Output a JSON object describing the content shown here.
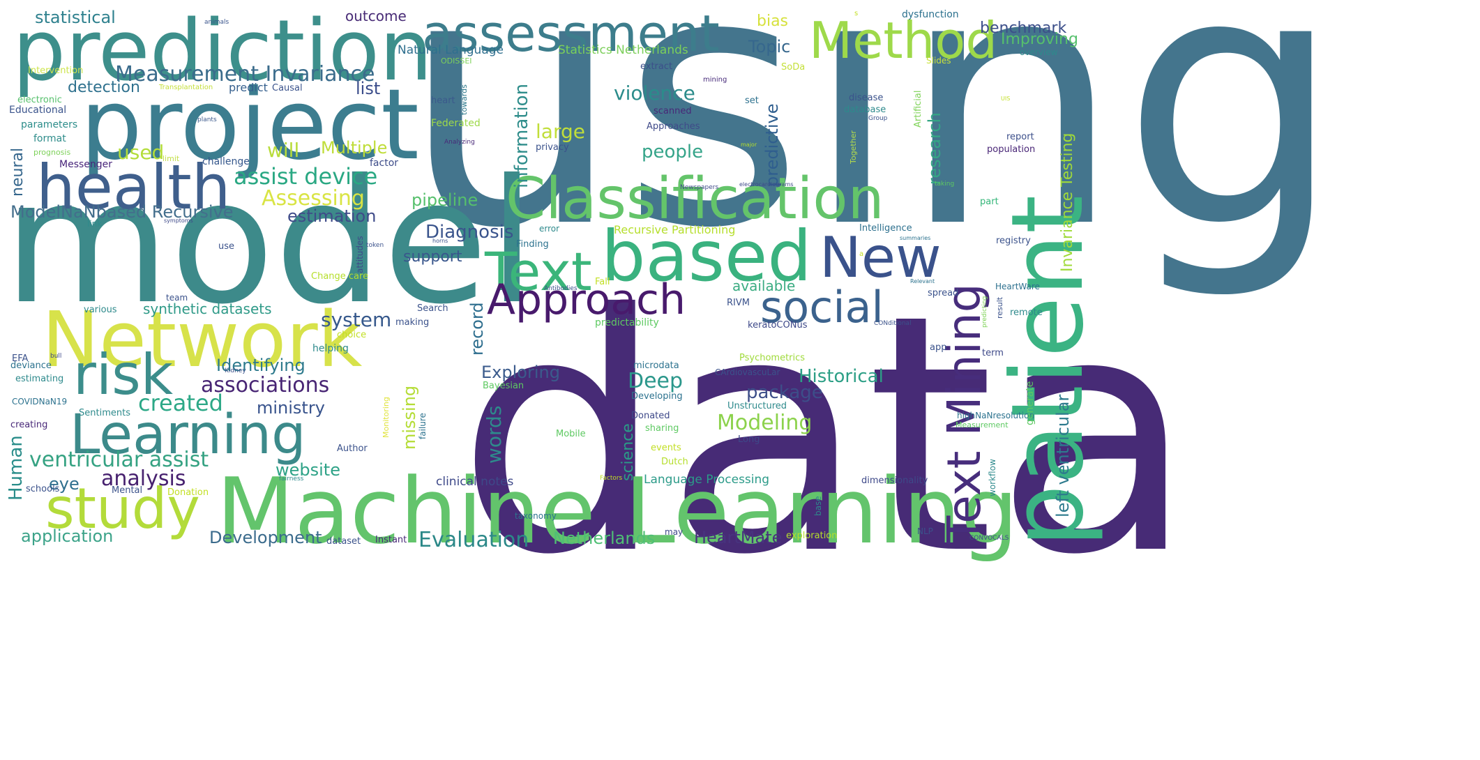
{
  "words": [
    {
      "text": "using",
      "color": "#44758d"
    },
    {
      "text": "data",
      "color": "#472b76"
    },
    {
      "text": "model",
      "color": "#3d8a8a"
    },
    {
      "text": "prediction",
      "color": "#3d8f8b"
    },
    {
      "text": "project",
      "color": "#3c7d8f"
    },
    {
      "text": "Machine Learning",
      "color": "#63c46c"
    },
    {
      "text": "patient",
      "color": "#3bb383"
    },
    {
      "text": "Network",
      "color": "#d7e24a"
    },
    {
      "text": "Classification",
      "color": "#64c46a"
    },
    {
      "text": "assessment",
      "color": "#3d7d8c"
    },
    {
      "text": "health",
      "color": "#3f5f8c"
    },
    {
      "text": "based",
      "color": "#3ab27f"
    },
    {
      "text": "Method",
      "color": "#9ed94a"
    },
    {
      "text": "Learning",
      "color": "#3c8a8a"
    },
    {
      "text": "risk",
      "color": "#3c8d8b"
    },
    {
      "text": "study",
      "color": "#b3db3a"
    },
    {
      "text": "Text Mining",
      "color": "#472d7c"
    },
    {
      "text": "Text",
      "color": "#3bb57a"
    },
    {
      "text": "Approach",
      "color": "#481a6c"
    },
    {
      "text": "New",
      "color": "#3a528b"
    },
    {
      "text": "social",
      "color": "#3b628d"
    },
    {
      "text": "ventricular assist",
      "color": "#35a282"
    },
    {
      "text": "Measurement Invariance",
      "color": "#3b6c8c"
    },
    {
      "text": "assist device",
      "color": "#2aa883"
    },
    {
      "text": "Assessing",
      "color": "#d9e444"
    },
    {
      "text": "ModelNaNbased Recursive",
      "color": "#436e8c"
    },
    {
      "text": "associations",
      "color": "#482574"
    },
    {
      "text": "created",
      "color": "#2da887"
    },
    {
      "text": "analysis",
      "color": "#47216f"
    },
    {
      "text": "application",
      "color": "#3ca389"
    },
    {
      "text": "Development",
      "color": "#3b6b8c"
    },
    {
      "text": "Evaluation",
      "color": "#2b8888"
    },
    {
      "text": "Netherlands",
      "color": "#4fbf75"
    },
    {
      "text": "HeartMate",
      "color": "#48337e"
    },
    {
      "text": "website",
      "color": "#2ea287"
    },
    {
      "text": "eye",
      "color": "#2f6f8e"
    },
    {
      "text": "Human",
      "color": "#2a8d8a"
    },
    {
      "text": "ministry",
      "color": "#38538c"
    },
    {
      "text": "Identifying",
      "color": "#2d7a8d"
    },
    {
      "text": "synthetic datasets",
      "color": "#2f9a88"
    },
    {
      "text": "system",
      "color": "#37598c"
    },
    {
      "text": "Exploring",
      "color": "#3b5b8c"
    },
    {
      "text": "Deep",
      "color": "#2b978b"
    },
    {
      "text": "package",
      "color": "#3d4e89"
    },
    {
      "text": "Historical",
      "color": "#2d9f86"
    },
    {
      "text": "Modeling",
      "color": "#8cd24c"
    },
    {
      "text": "words",
      "color": "#2e8a8c"
    },
    {
      "text": "science",
      "color": "#2a9c87"
    },
    {
      "text": "missing",
      "color": "#b4dc35"
    },
    {
      "text": "record",
      "color": "#2e6e8e"
    },
    {
      "text": "support",
      "color": "#39568c"
    },
    {
      "text": "Diagnosis",
      "color": "#3a548c"
    },
    {
      "text": "estimation",
      "color": "#3f4b89"
    },
    {
      "text": "pipeline",
      "color": "#56c06c"
    },
    {
      "text": "people",
      "color": "#35a489"
    },
    {
      "text": "violence",
      "color": "#2b8c8b"
    },
    {
      "text": "large",
      "color": "#c1de3a"
    },
    {
      "text": "will",
      "color": "#b8dc3a"
    },
    {
      "text": "Multiple",
      "color": "#bfdd38"
    },
    {
      "text": "information",
      "color": "#2f8d8b"
    },
    {
      "text": "Topic",
      "color": "#36678d"
    },
    {
      "text": "list",
      "color": "#3a4c8a"
    },
    {
      "text": "detection",
      "color": "#2f718e"
    },
    {
      "text": "used",
      "color": "#b3dd3a"
    },
    {
      "text": "neural",
      "color": "#36678d"
    },
    {
      "text": "statistical",
      "color": "#2f818e"
    },
    {
      "text": "outcome",
      "color": "#482b76"
    },
    {
      "text": "bias",
      "color": "#d6e13c"
    },
    {
      "text": "benchmark",
      "color": "#3c4f8a"
    },
    {
      "text": "Improving",
      "color": "#56c06c"
    },
    {
      "text": "Invariance Testing",
      "color": "#a0da39"
    },
    {
      "text": "left ventricular",
      "color": "#2d7a8d"
    },
    {
      "text": "research",
      "color": "#34a685"
    },
    {
      "text": "predictive",
      "color": "#2f5e8e"
    },
    {
      "text": "available",
      "color": "#3bac82"
    },
    {
      "text": "Language Processing",
      "color": "#2c9b89"
    },
    {
      "text": "clinical notes",
      "color": "#3e4989"
    },
    {
      "text": "Statistics Netherlands",
      "color": "#7ccf5a"
    },
    {
      "text": "Natural Language",
      "color": "#2f6f8e"
    },
    {
      "text": "dysfunction",
      "color": "#2c718e"
    },
    {
      "text": "overview",
      "color": "#2e8a8c"
    },
    {
      "text": "predict",
      "color": "#355f8d"
    },
    {
      "text": "Causal",
      "color": "#3b538c"
    },
    {
      "text": "parameters",
      "color": "#2c8d8a"
    },
    {
      "text": "Educational",
      "color": "#3b548c"
    },
    {
      "text": "format",
      "color": "#2f8d8b"
    },
    {
      "text": "Messenger",
      "color": "#48257a"
    },
    {
      "text": "challenge",
      "color": "#35578c"
    },
    {
      "text": "factor",
      "color": "#3d4c89"
    },
    {
      "text": "limit",
      "color": "#c4e04c"
    },
    {
      "text": "Intervention",
      "color": "#cde54c"
    },
    {
      "text": "electronic",
      "color": "#56c06c"
    },
    {
      "text": "prognosis",
      "color": "#7ed15a"
    },
    {
      "text": "Transplantation",
      "color": "#c5df3a"
    },
    {
      "text": "animals",
      "color": "#3a548c"
    },
    {
      "text": "heart",
      "color": "#3b598c"
    },
    {
      "text": "towards",
      "color": "#2e7a8d"
    },
    {
      "text": "ODISSEI",
      "color": "#7ed15a"
    },
    {
      "text": "Federated",
      "color": "#9ed94a"
    },
    {
      "text": "plants",
      "color": "#3b598c"
    },
    {
      "text": "Analyzing",
      "color": "#482878"
    },
    {
      "text": "extract",
      "color": "#3c4f8a"
    },
    {
      "text": "SoDa",
      "color": "#c4e03a"
    },
    {
      "text": "mining",
      "color": "#472a7a"
    },
    {
      "text": "set",
      "color": "#2d718e"
    },
    {
      "text": "disease",
      "color": "#3b528b"
    },
    {
      "text": "database",
      "color": "#2e8a8c"
    },
    {
      "text": "scanned",
      "color": "#482878"
    },
    {
      "text": "Approaches",
      "color": "#3f4a89"
    },
    {
      "text": "privacy",
      "color": "#3b528b"
    },
    {
      "text": "Slides",
      "color": "#c9e23a"
    },
    {
      "text": "Artificial",
      "color": "#80d35a"
    },
    {
      "text": "Together",
      "color": "#b6dd4a"
    },
    {
      "text": "Group",
      "color": "#3b528b"
    },
    {
      "text": "report",
      "color": "#3c4f8a"
    },
    {
      "text": "population",
      "color": "#482576"
    },
    {
      "text": "major",
      "color": "#b5de2b"
    },
    {
      "text": "taking",
      "color": "#5ec962"
    },
    {
      "text": "part",
      "color": "#34b679"
    },
    {
      "text": "registry",
      "color": "#3b528b"
    },
    {
      "text": "Intelligence",
      "color": "#2d708e"
    },
    {
      "text": "summaries",
      "color": "#2c728e"
    },
    {
      "text": "remote",
      "color": "#2e8a8c"
    },
    {
      "text": "HeartWare",
      "color": "#2d708e"
    },
    {
      "text": "result",
      "color": "#3b528b"
    },
    {
      "text": "predicting",
      "color": "#7ad151"
    },
    {
      "text": "spread",
      "color": "#3b528b"
    },
    {
      "text": "Relevant",
      "color": "#2c728e"
    },
    {
      "text": "Newspapers",
      "color": "#3e4989"
    },
    {
      "text": "electrocardiograms",
      "color": "#3e4989"
    },
    {
      "text": "Recursive Partitioning",
      "color": "#b5de2b"
    },
    {
      "text": "Finding",
      "color": "#2c728e"
    },
    {
      "text": "error",
      "color": "#2e8a8c"
    },
    {
      "text": "token",
      "color": "#3b528b"
    },
    {
      "text": "horns",
      "color": "#3b528b"
    },
    {
      "text": "attitudes",
      "color": "#3e4989"
    },
    {
      "text": "Change care",
      "color": "#b5de2b"
    },
    {
      "text": "Antibodies",
      "color": "#3b528b"
    },
    {
      "text": "Fall",
      "color": "#c2df23"
    },
    {
      "text": "RIVM",
      "color": "#3b528b"
    },
    {
      "text": "keratoCONus",
      "color": "#3e4989"
    },
    {
      "text": "CONditional",
      "color": "#3b528b"
    },
    {
      "text": "predictability",
      "color": "#5ec962"
    },
    {
      "text": "Search",
      "color": "#3b528b"
    },
    {
      "text": "making",
      "color": "#3b528b"
    },
    {
      "text": "choice",
      "color": "#c2df23"
    },
    {
      "text": "helping",
      "color": "#2e8a8c"
    },
    {
      "text": "Psychometrics",
      "color": "#9fda3a"
    },
    {
      "text": "microdata",
      "color": "#2c728e"
    },
    {
      "text": "CArdiovascuLar",
      "color": "#3b528b"
    },
    {
      "text": "Bayesian",
      "color": "#5ec962"
    },
    {
      "text": "Developing",
      "color": "#2c728e"
    },
    {
      "text": "Unstructured",
      "color": "#2e8a8c"
    },
    {
      "text": "Donated",
      "color": "#3e4989"
    },
    {
      "text": "sharing",
      "color": "#5ec962"
    },
    {
      "text": "events",
      "color": "#c2df23"
    },
    {
      "text": "Dutch",
      "color": "#b5de2b"
    },
    {
      "text": "Long",
      "color": "#3e4989"
    },
    {
      "text": "Mobile",
      "color": "#5ec962"
    },
    {
      "text": "failure",
      "color": "#2c728e"
    },
    {
      "text": "Monitoring",
      "color": "#e0e33a"
    },
    {
      "text": "Author",
      "color": "#3b528b"
    },
    {
      "text": "workflow",
      "color": "#2e8a8c"
    },
    {
      "text": "highNaNresolution",
      "color": "#2c728e"
    },
    {
      "text": "Measurement",
      "color": "#5ec962"
    },
    {
      "text": "generate",
      "color": "#5ec962"
    },
    {
      "text": "term",
      "color": "#3e4989"
    },
    {
      "text": "app",
      "color": "#3b528b"
    },
    {
      "text": "dimensionality",
      "color": "#3e4989"
    },
    {
      "text": "Factors",
      "color": "#c2df23"
    },
    {
      "text": "Mental",
      "color": "#3b528b"
    },
    {
      "text": "Donation",
      "color": "#c2df23"
    },
    {
      "text": "schools",
      "color": "#3b528b"
    },
    {
      "text": "fairness",
      "color": "#2e8a8c"
    },
    {
      "text": "taxonomy",
      "color": "#2c728e"
    },
    {
      "text": "base",
      "color": "#2e8a8c"
    },
    {
      "text": "may",
      "color": "#3e4989"
    },
    {
      "text": "exploration",
      "color": "#b5de2b"
    },
    {
      "text": "NLP",
      "color": "#3b528b"
    },
    {
      "text": "CONVOCALS",
      "color": "#3e4989"
    },
    {
      "text": "dataset",
      "color": "#3b528b"
    },
    {
      "text": "Instant",
      "color": "#482878"
    },
    {
      "text": "EFA",
      "color": "#3b528b"
    },
    {
      "text": "bull",
      "color": "#3e4989"
    },
    {
      "text": "deviance",
      "color": "#2c728e"
    },
    {
      "text": "estimating",
      "color": "#2e8a8c"
    },
    {
      "text": "Kidney",
      "color": "#3b528b"
    },
    {
      "text": "COVIDNaN19",
      "color": "#2c728e"
    },
    {
      "text": "Sentiments",
      "color": "#2e8a8c"
    },
    {
      "text": "creating",
      "color": "#482878"
    },
    {
      "text": "team",
      "color": "#3b528b"
    },
    {
      "text": "various",
      "color": "#2e8a8c"
    },
    {
      "text": "use",
      "color": "#3b528b"
    },
    {
      "text": "link",
      "color": "#2e8a8c"
    },
    {
      "text": "symptoms",
      "color": "#3e4989"
    },
    {
      "text": "UIS",
      "color": "#c2df23"
    },
    {
      "text": "a",
      "color": "#c2df23"
    },
    {
      "text": "s",
      "color": "#c2df23"
    }
  ]
}
